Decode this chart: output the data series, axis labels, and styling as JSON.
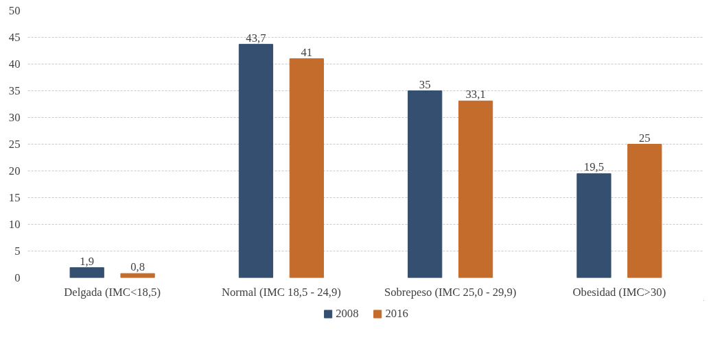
{
  "chart_data": {
    "type": "bar",
    "categories": [
      "Delgada (IMC<18,5)",
      "Normal (IMC 18,5 - 24,9)",
      "Sobrepeso (IMC 25,0 - 29,9)",
      "Obesidad (IMC>30)"
    ],
    "series": [
      {
        "name": "2008",
        "color": "#344f6f",
        "values": [
          1.9,
          43.7,
          35,
          19.5
        ],
        "value_labels": [
          "1,9",
          "43,7",
          "35",
          "19,5"
        ]
      },
      {
        "name": "2016",
        "color": "#c46c2b",
        "values": [
          0.8,
          41,
          33.1,
          25
        ],
        "value_labels": [
          "0,8",
          "41",
          "33,1",
          "25"
        ]
      }
    ],
    "ylim": [
      0,
      50
    ],
    "yticks": [
      0,
      5,
      10,
      15,
      20,
      25,
      30,
      35,
      40,
      45,
      50
    ],
    "grid": "y",
    "legend": "bottom"
  }
}
